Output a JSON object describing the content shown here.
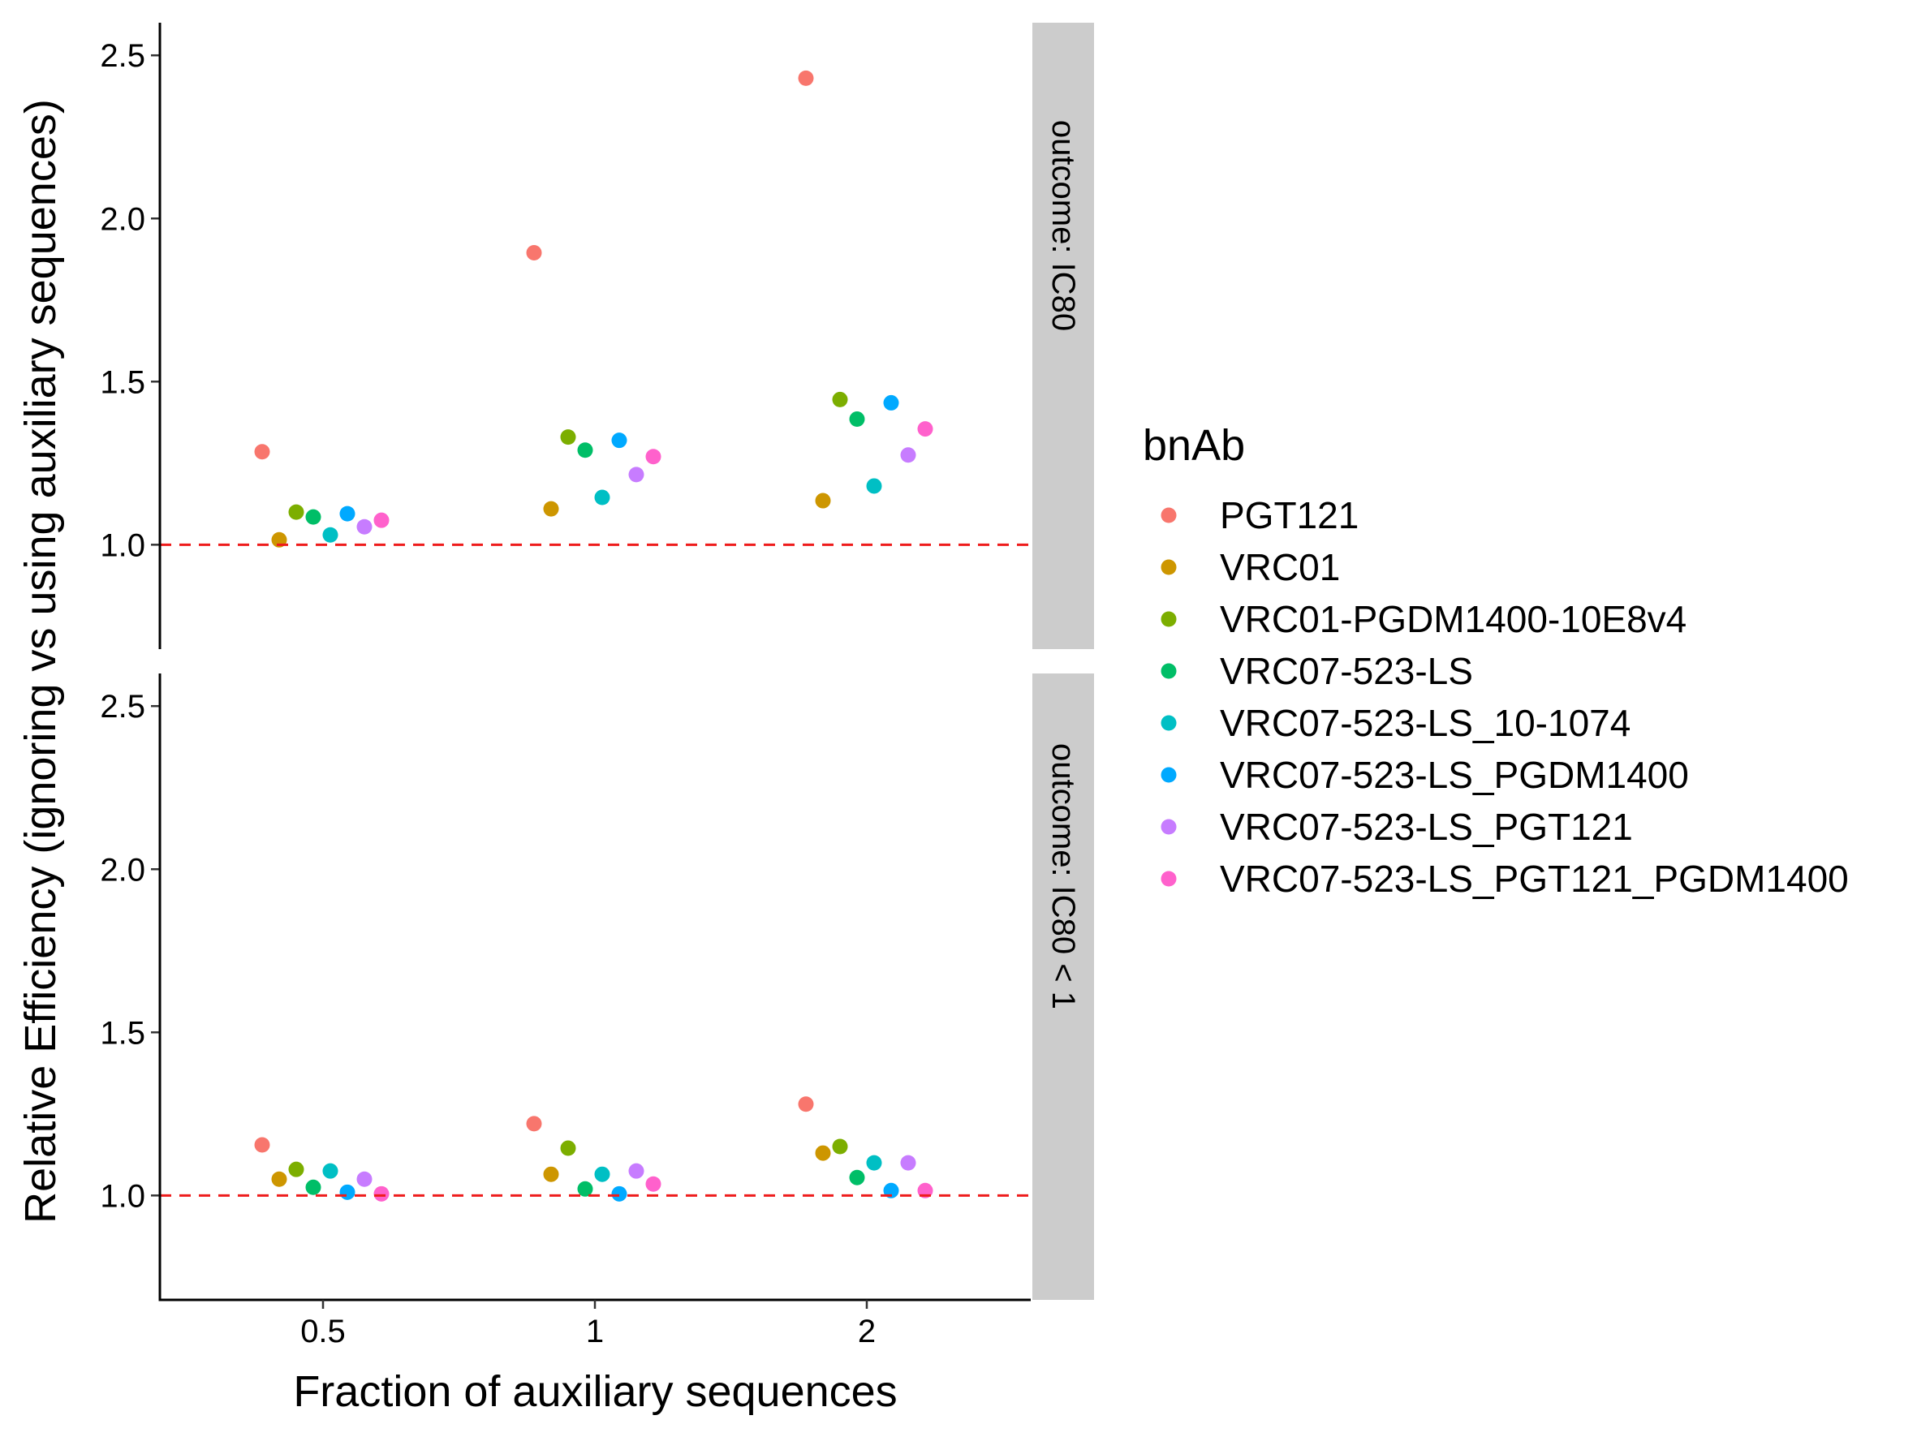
{
  "chart_data": {
    "type": "scatter",
    "xlabel": "Fraction of auxiliary sequences",
    "ylabel": "Relative Efficiency (ignoring vs using auxiliary sequences)",
    "categories": [
      "0.5",
      "1",
      "2"
    ],
    "ylim": [
      0.68,
      2.6
    ],
    "yticks": [
      "1.0",
      "1.5",
      "2.0",
      "2.5"
    ],
    "reference_line": {
      "y": 1.0,
      "color": "#ee1c1c",
      "style": "dashed"
    },
    "grid": false,
    "legend": {
      "title": "bnAb",
      "position": "right"
    },
    "series": [
      {
        "name": "PGT121",
        "color": "#f8766d"
      },
      {
        "name": "VRC01",
        "color": "#cd9600"
      },
      {
        "name": "VRC01-PGDM1400-10E8v4",
        "color": "#7cae00"
      },
      {
        "name": "VRC07-523-LS",
        "color": "#00be67"
      },
      {
        "name": "VRC07-523-LS_10-1074",
        "color": "#00bfc4"
      },
      {
        "name": "VRC07-523-LS_PGDM1400",
        "color": "#00a9ff"
      },
      {
        "name": "VRC07-523-LS_PGT121",
        "color": "#c77cff"
      },
      {
        "name": "VRC07-523-LS_PGT121_PGDM1400",
        "color": "#ff61cc"
      }
    ],
    "panels": [
      {
        "strip": "outcome: IC80",
        "values": [
          [
            1.285,
            1.895,
            2.43
          ],
          [
            1.015,
            1.11,
            1.135
          ],
          [
            1.1,
            1.33,
            1.445
          ],
          [
            1.085,
            1.29,
            1.385
          ],
          [
            1.03,
            1.145,
            1.18
          ],
          [
            1.095,
            1.32,
            1.435
          ],
          [
            1.055,
            1.215,
            1.275
          ],
          [
            1.075,
            1.27,
            1.355
          ]
        ]
      },
      {
        "strip": "outcome: IC80 < 1",
        "values": [
          [
            1.155,
            1.22,
            1.28
          ],
          [
            1.05,
            1.065,
            1.13
          ],
          [
            1.08,
            1.145,
            1.15
          ],
          [
            1.025,
            1.02,
            1.055
          ],
          [
            1.075,
            1.065,
            1.1
          ],
          [
            1.01,
            1.005,
            1.015
          ],
          [
            1.05,
            1.075,
            1.1
          ],
          [
            1.005,
            1.035,
            1.015
          ]
        ]
      }
    ]
  }
}
